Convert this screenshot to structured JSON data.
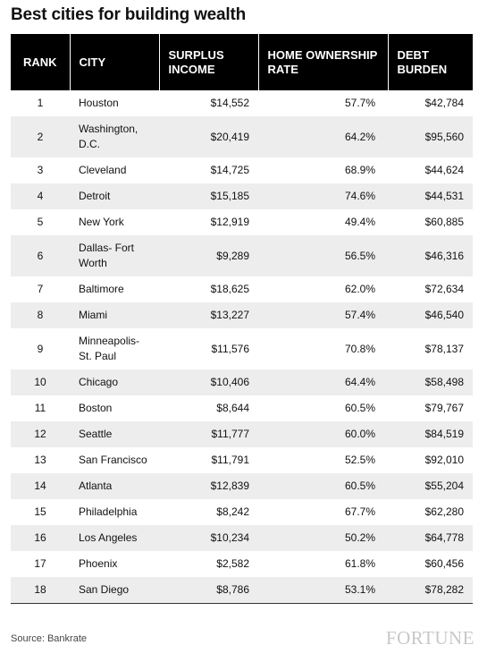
{
  "title": "Best cities for building wealth",
  "source": "Source: Bankrate",
  "brand": "FORTUNE",
  "chart_data": {
    "type": "table",
    "title": "Best cities for building wealth",
    "columns": [
      "RANK",
      "CITY",
      "SURPLUS INCOME",
      "HOME OWNERSHIP RATE",
      "DEBT BURDEN"
    ],
    "rows": [
      {
        "rank": "1",
        "city": "Houston",
        "surplus": "$14,552",
        "home": "57.7%",
        "debt": "$42,784"
      },
      {
        "rank": "2",
        "city": "Washington, D.C.",
        "surplus": "$20,419",
        "home": "64.2%",
        "debt": "$95,560"
      },
      {
        "rank": "3",
        "city": "Cleveland",
        "surplus": "$14,725",
        "home": "68.9%",
        "debt": "$44,624"
      },
      {
        "rank": "4",
        "city": "Detroit",
        "surplus": "$15,185",
        "home": "74.6%",
        "debt": "$44,531"
      },
      {
        "rank": "5",
        "city": "New York",
        "surplus": "$12,919",
        "home": "49.4%",
        "debt": "$60,885"
      },
      {
        "rank": "6",
        "city": "Dallas- Fort Worth",
        "surplus": "$9,289",
        "home": "56.5%",
        "debt": "$46,316"
      },
      {
        "rank": "7",
        "city": "Baltimore",
        "surplus": "$18,625",
        "home": "62.0%",
        "debt": "$72,634"
      },
      {
        "rank": "8",
        "city": "Miami",
        "surplus": "$13,227",
        "home": "57.4%",
        "debt": "$46,540"
      },
      {
        "rank": "9",
        "city": "Minneapolis- St. Paul",
        "surplus": "$11,576",
        "home": "70.8%",
        "debt": "$78,137"
      },
      {
        "rank": "10",
        "city": "Chicago",
        "surplus": "$10,406",
        "home": "64.4%",
        "debt": "$58,498"
      },
      {
        "rank": "11",
        "city": "Boston",
        "surplus": "$8,644",
        "home": "60.5%",
        "debt": "$79,767"
      },
      {
        "rank": "12",
        "city": "Seattle",
        "surplus": "$11,777",
        "home": "60.0%",
        "debt": "$84,519"
      },
      {
        "rank": "13",
        "city": "San Francisco",
        "surplus": "$11,791",
        "home": "52.5%",
        "debt": "$92,010"
      },
      {
        "rank": "14",
        "city": "Atlanta",
        "surplus": "$12,839",
        "home": "60.5%",
        "debt": "$55,204"
      },
      {
        "rank": "15",
        "city": "Philadelphia",
        "surplus": "$8,242",
        "home": "67.7%",
        "debt": "$62,280"
      },
      {
        "rank": "16",
        "city": "Los Angeles",
        "surplus": "$10,234",
        "home": "50.2%",
        "debt": "$64,778"
      },
      {
        "rank": "17",
        "city": "Phoenix",
        "surplus": "$2,582",
        "home": "61.8%",
        "debt": "$60,456"
      },
      {
        "rank": "18",
        "city": "San Diego",
        "surplus": "$8,786",
        "home": "53.1%",
        "debt": "$78,282"
      }
    ]
  }
}
